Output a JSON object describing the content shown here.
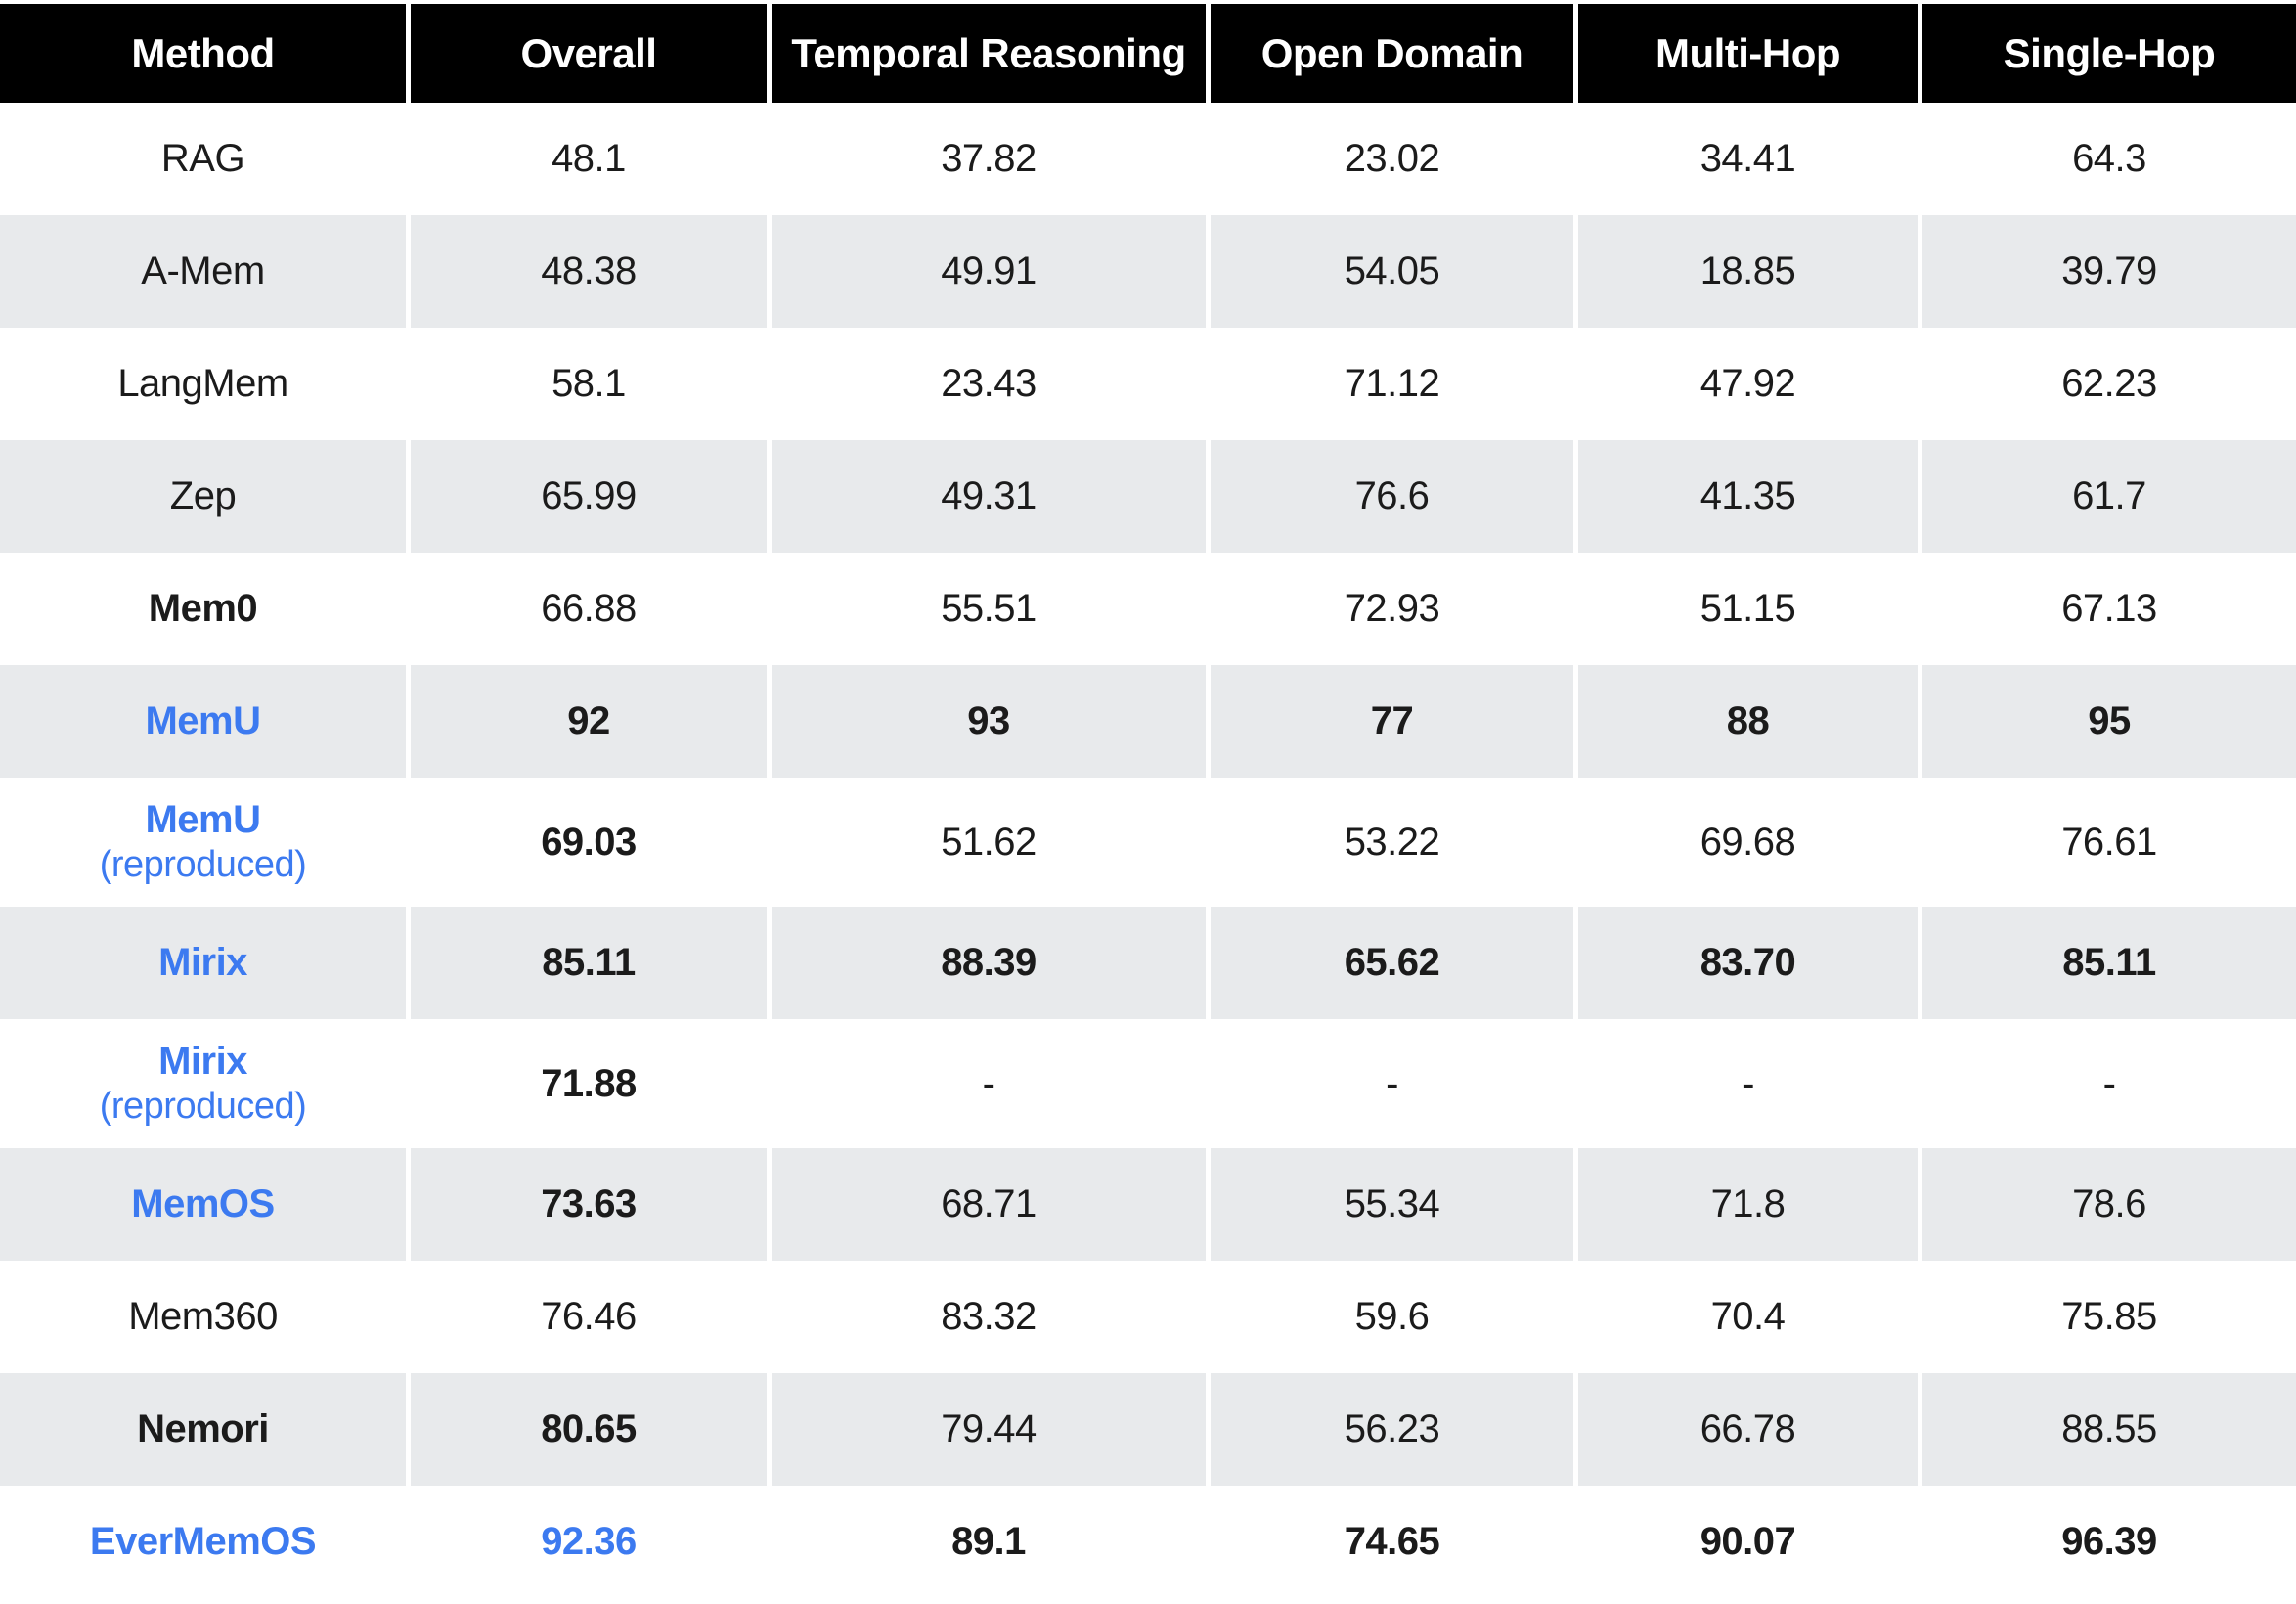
{
  "chart_data": {
    "type": "table",
    "columns": [
      "Method",
      "Overall",
      "Temporal Reasoning",
      "Open Domain",
      "Multi-Hop",
      "Single-Hop"
    ],
    "rows": [
      {
        "method": "RAG",
        "sub": "",
        "method_blue": false,
        "method_bold": false,
        "values": [
          "48.1",
          "37.82",
          "23.02",
          "34.41",
          "64.3"
        ],
        "value_styles": [
          "",
          "",
          "",
          "",
          ""
        ]
      },
      {
        "method": "A-Mem",
        "sub": "",
        "method_blue": false,
        "method_bold": false,
        "values": [
          "48.38",
          "49.91",
          "54.05",
          "18.85",
          "39.79"
        ],
        "value_styles": [
          "",
          "",
          "",
          "",
          ""
        ]
      },
      {
        "method": "LangMem",
        "sub": "",
        "method_blue": false,
        "method_bold": false,
        "values": [
          "58.1",
          "23.43",
          "71.12",
          "47.92",
          "62.23"
        ],
        "value_styles": [
          "",
          "",
          "",
          "",
          ""
        ]
      },
      {
        "method": "Zep",
        "sub": "",
        "method_blue": false,
        "method_bold": false,
        "values": [
          "65.99",
          "49.31",
          "76.6",
          "41.35",
          "61.7"
        ],
        "value_styles": [
          "",
          "",
          "",
          "",
          ""
        ]
      },
      {
        "method": "Mem0",
        "sub": "",
        "method_blue": false,
        "method_bold": true,
        "values": [
          "66.88",
          "55.51",
          "72.93",
          "51.15",
          "67.13"
        ],
        "value_styles": [
          "",
          "",
          "",
          "",
          ""
        ]
      },
      {
        "method": "MemU",
        "sub": "",
        "method_blue": true,
        "method_bold": true,
        "values": [
          "92",
          "93",
          "77",
          "88",
          "95"
        ],
        "value_styles": [
          "bold",
          "bold",
          "bold",
          "bold",
          "bold"
        ]
      },
      {
        "method": "MemU",
        "sub": "(reproduced)",
        "method_blue": true,
        "method_bold": true,
        "values": [
          "69.03",
          "51.62",
          "53.22",
          "69.68",
          "76.61"
        ],
        "value_styles": [
          "bold",
          "",
          "",
          "",
          ""
        ]
      },
      {
        "method": "Mirix",
        "sub": "",
        "method_blue": true,
        "method_bold": true,
        "values": [
          "85.11",
          "88.39",
          "65.62",
          "83.70",
          "85.11"
        ],
        "value_styles": [
          "bold",
          "bold",
          "bold",
          "bold",
          "bold"
        ]
      },
      {
        "method": "Mirix",
        "sub": "(reproduced)",
        "method_blue": true,
        "method_bold": true,
        "values": [
          "71.88",
          "-",
          "-",
          "-",
          "-"
        ],
        "value_styles": [
          "bold",
          "",
          "",
          "",
          ""
        ]
      },
      {
        "method": "MemOS",
        "sub": "",
        "method_blue": true,
        "method_bold": true,
        "values": [
          "73.63",
          "68.71",
          "55.34",
          "71.8",
          "78.6"
        ],
        "value_styles": [
          "bold",
          "",
          "",
          "",
          ""
        ]
      },
      {
        "method": "Mem360",
        "sub": "",
        "method_blue": false,
        "method_bold": false,
        "values": [
          "76.46",
          "83.32",
          "59.6",
          "70.4",
          "75.85"
        ],
        "value_styles": [
          "",
          "",
          "",
          "",
          ""
        ]
      },
      {
        "method": "Nemori",
        "sub": "",
        "method_blue": false,
        "method_bold": true,
        "values": [
          "80.65",
          "79.44",
          "56.23",
          "66.78",
          "88.55"
        ],
        "value_styles": [
          "bold",
          "",
          "",
          "",
          ""
        ]
      },
      {
        "method": "EverMemOS",
        "sub": "",
        "method_blue": true,
        "method_bold": true,
        "values": [
          "92.36",
          "89.1",
          "74.65",
          "90.07",
          "96.39"
        ],
        "value_styles": [
          "blue-bold",
          "bold",
          "bold",
          "bold",
          "bold"
        ]
      }
    ]
  },
  "colors": {
    "header_bg": "#000000",
    "header_text": "#ffffff",
    "row_alt_bg": "#E8EAEC",
    "accent_blue": "#3C7AF0",
    "text": "#1B1B1B"
  }
}
